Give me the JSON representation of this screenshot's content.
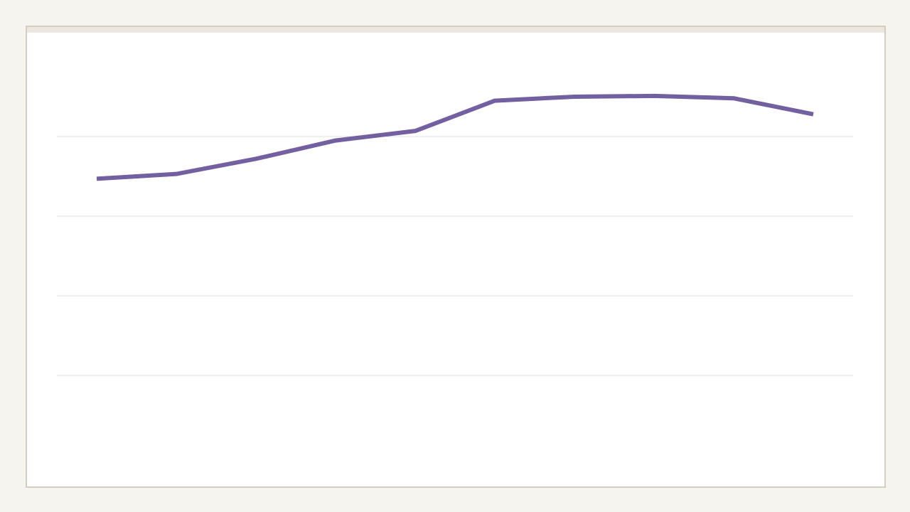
{
  "chart_data": {
    "type": "line",
    "categories": [
      null,
      null,
      null,
      null,
      null,
      null,
      null,
      null,
      null,
      null
    ],
    "values": [
      3.47,
      3.53,
      3.72,
      3.95,
      4.07,
      4.45,
      4.5,
      4.51,
      4.48,
      4.28
    ],
    "color": "#7360a0",
    "ylim": [
      0,
      5
    ],
    "yticks": [
      1,
      2,
      3,
      4
    ],
    "grid": true
  }
}
